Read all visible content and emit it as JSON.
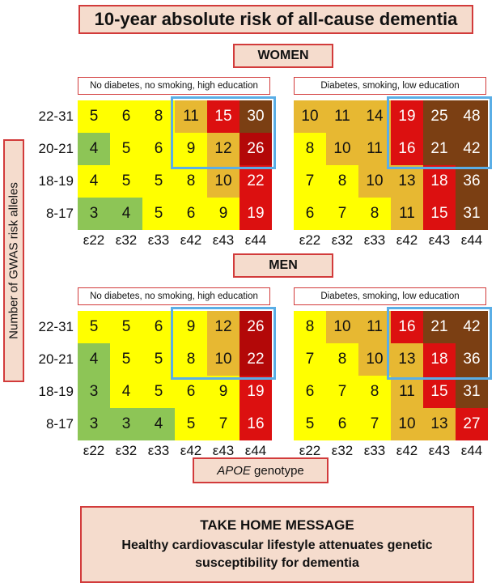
{
  "title": "10-year absolute risk of all-cause dementia",
  "sections": {
    "women": "WOMEN",
    "men": "MEN"
  },
  "y_axis_title": "Number of GWAS risk alleles",
  "x_axis_title": {
    "italic": "APOE",
    "rest": " genotype"
  },
  "take_home": {
    "heading": "TAKE HOME MESSAGE",
    "body": "Healthy cardiovascular lifestyle attenuates genetic susceptibility for dementia"
  },
  "colors": {
    "green": "#8dc556",
    "yellow": "#ffff00",
    "gold": "#e7b832",
    "red": "#dc1010",
    "darkred": "#b30808",
    "brown": "#7b3f13",
    "highlight": "#5aaee6"
  },
  "chart_data": {
    "type": "heatmap",
    "x_categories": [
      "ε22",
      "ε32",
      "ε33",
      "ε42",
      "ε43",
      "ε44"
    ],
    "y_categories": [
      "22-31",
      "20-21",
      "18-19",
      "8-17"
    ],
    "panels": [
      {
        "id": "women-low",
        "sex": "WOMEN",
        "condition": "No diabetes, no smoking, high education",
        "values": [
          [
            5,
            6,
            8,
            11,
            15,
            30
          ],
          [
            4,
            5,
            6,
            9,
            12,
            26
          ],
          [
            4,
            5,
            5,
            8,
            10,
            22
          ],
          [
            3,
            4,
            5,
            6,
            9,
            19
          ]
        ],
        "colors": [
          [
            "yellow",
            "yellow",
            "yellow",
            "gold",
            "red",
            "brown"
          ],
          [
            "green",
            "yellow",
            "yellow",
            "yellow",
            "gold",
            "darkred"
          ],
          [
            "yellow",
            "yellow",
            "yellow",
            "yellow",
            "gold",
            "red"
          ],
          [
            "green",
            "green",
            "yellow",
            "yellow",
            "yellow",
            "red"
          ]
        ]
      },
      {
        "id": "women-high",
        "sex": "WOMEN",
        "condition": "Diabetes, smoking, low education",
        "values": [
          [
            10,
            11,
            14,
            19,
            25,
            48
          ],
          [
            8,
            10,
            11,
            16,
            21,
            42
          ],
          [
            7,
            8,
            10,
            13,
            18,
            36
          ],
          [
            6,
            7,
            8,
            11,
            15,
            31
          ]
        ],
        "colors": [
          [
            "gold",
            "gold",
            "gold",
            "red",
            "brown",
            "brown"
          ],
          [
            "yellow",
            "gold",
            "gold",
            "red",
            "brown",
            "brown"
          ],
          [
            "yellow",
            "yellow",
            "gold",
            "gold",
            "red",
            "brown"
          ],
          [
            "yellow",
            "yellow",
            "yellow",
            "gold",
            "red",
            "brown"
          ]
        ]
      },
      {
        "id": "men-low",
        "sex": "MEN",
        "condition": "No diabetes, no smoking, high education",
        "values": [
          [
            5,
            5,
            6,
            9,
            12,
            26
          ],
          [
            4,
            5,
            5,
            8,
            10,
            22
          ],
          [
            3,
            4,
            5,
            6,
            9,
            19
          ],
          [
            3,
            3,
            4,
            5,
            7,
            16
          ]
        ],
        "colors": [
          [
            "yellow",
            "yellow",
            "yellow",
            "yellow",
            "gold",
            "darkred"
          ],
          [
            "green",
            "yellow",
            "yellow",
            "yellow",
            "gold",
            "darkred"
          ],
          [
            "green",
            "yellow",
            "yellow",
            "yellow",
            "yellow",
            "red"
          ],
          [
            "green",
            "green",
            "green",
            "yellow",
            "yellow",
            "red"
          ]
        ]
      },
      {
        "id": "men-high",
        "sex": "MEN",
        "condition": "Diabetes, smoking, low education",
        "values": [
          [
            8,
            10,
            11,
            16,
            21,
            42
          ],
          [
            7,
            8,
            10,
            13,
            18,
            36
          ],
          [
            6,
            7,
            8,
            11,
            15,
            31
          ],
          [
            5,
            6,
            7,
            10,
            13,
            27
          ]
        ],
        "colors": [
          [
            "yellow",
            "gold",
            "gold",
            "red",
            "brown",
            "brown"
          ],
          [
            "yellow",
            "yellow",
            "gold",
            "gold",
            "red",
            "brown"
          ],
          [
            "yellow",
            "yellow",
            "yellow",
            "gold",
            "red",
            "brown"
          ],
          [
            "yellow",
            "yellow",
            "yellow",
            "gold",
            "gold",
            "red"
          ]
        ]
      }
    ],
    "highlight": "rows 22-31 and 20-21, columns ε42, ε43, ε44"
  }
}
